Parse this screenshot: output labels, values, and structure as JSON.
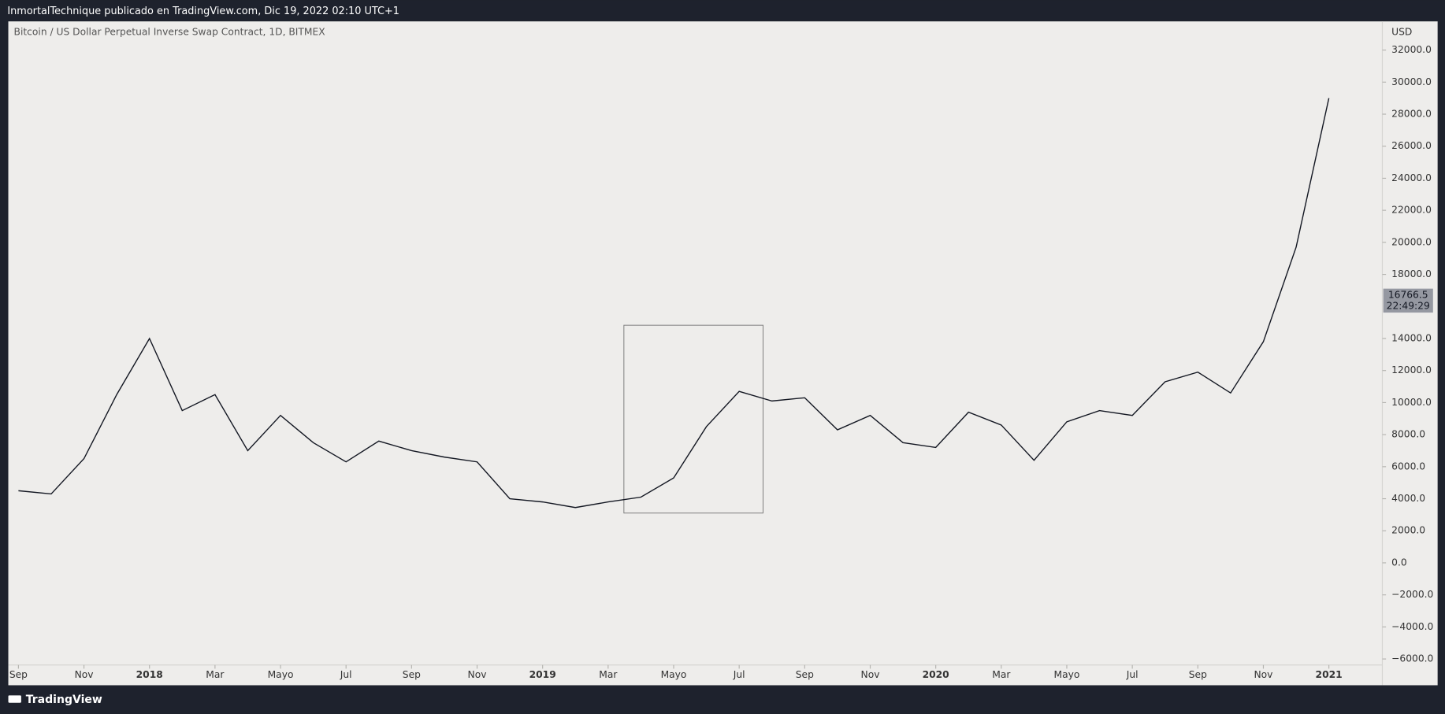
{
  "header": "InmortalTechnique publicado en TradingView.com, Dic 19, 2022 02:10 UTC+1",
  "footer": "TradingView",
  "chart_data": {
    "type": "line",
    "title": "Bitcoin / US Dollar Perpetual Inverse Swap Contract, 1D, BITMEX",
    "y_axis_label": "USD",
    "x": [
      "2017-09",
      "2017-10",
      "2017-11",
      "2017-12",
      "2018-01",
      "2018-02",
      "2018-03",
      "2018-04",
      "2018-05",
      "2018-06",
      "2018-07",
      "2018-08",
      "2018-09",
      "2018-10",
      "2018-11",
      "2018-12",
      "2019-01",
      "2019-02",
      "2019-03",
      "2019-04",
      "2019-05",
      "2019-06",
      "2019-07",
      "2019-08",
      "2019-09",
      "2019-10",
      "2019-11",
      "2019-12",
      "2020-01",
      "2020-02",
      "2020-03",
      "2020-04",
      "2020-05",
      "2020-06",
      "2020-07",
      "2020-08",
      "2020-09",
      "2020-10",
      "2020-11",
      "2020-12",
      "2021-01"
    ],
    "series": [
      {
        "name": "BTCUSD",
        "color": "#131722",
        "values": [
          4500,
          4300,
          6500,
          10500,
          14000,
          9500,
          10500,
          7000,
          9200,
          7500,
          6300,
          7600,
          7000,
          6600,
          6300,
          4000,
          3800,
          3450,
          3800,
          4100,
          5300,
          8500,
          10700,
          10100,
          10300,
          8300,
          9200,
          7500,
          7200,
          9400,
          8600,
          6400,
          8800,
          9500,
          9200,
          11300,
          11900,
          10600,
          13800,
          19700,
          29000
        ]
      }
    ],
    "xticks": [
      {
        "value": "2017-09",
        "label": "Sep"
      },
      {
        "value": "2017-11",
        "label": "Nov"
      },
      {
        "value": "2018-01",
        "label": "2018"
      },
      {
        "value": "2018-03",
        "label": "Mar"
      },
      {
        "value": "2018-05",
        "label": "Mayo"
      },
      {
        "value": "2018-07",
        "label": "Jul"
      },
      {
        "value": "2018-09",
        "label": "Sep"
      },
      {
        "value": "2018-11",
        "label": "Nov"
      },
      {
        "value": "2019-01",
        "label": "2019"
      },
      {
        "value": "2019-03",
        "label": "Mar"
      },
      {
        "value": "2019-05",
        "label": "Mayo"
      },
      {
        "value": "2019-07",
        "label": "Jul"
      },
      {
        "value": "2019-09",
        "label": "Sep"
      },
      {
        "value": "2019-11",
        "label": "Nov"
      },
      {
        "value": "2020-01",
        "label": "2020"
      },
      {
        "value": "2020-03",
        "label": "Mar"
      },
      {
        "value": "2020-05",
        "label": "Mayo"
      },
      {
        "value": "2020-07",
        "label": "Jul"
      },
      {
        "value": "2020-09",
        "label": "Sep"
      },
      {
        "value": "2020-11",
        "label": "Nov"
      },
      {
        "value": "2021-01",
        "label": "2021"
      }
    ],
    "ylim": [
      -7640,
      33790
    ],
    "yticks": [
      {
        "value": -6000,
        "label": "−6000.0"
      },
      {
        "value": -4000,
        "label": "−4000.0"
      },
      {
        "value": -2000,
        "label": "−2000.0"
      },
      {
        "value": 0,
        "label": "0.0"
      },
      {
        "value": 2000,
        "label": "2000.0"
      },
      {
        "value": 4000,
        "label": "4000.0"
      },
      {
        "value": 6000,
        "label": "6000.0"
      },
      {
        "value": 8000,
        "label": "8000.0"
      },
      {
        "value": 10000,
        "label": "10000.0"
      },
      {
        "value": 12000,
        "label": "12000.0"
      },
      {
        "value": 14000,
        "label": "14000.0"
      },
      {
        "value": 18000,
        "label": "18000.0"
      },
      {
        "value": 20000,
        "label": "20000.0"
      },
      {
        "value": 22000,
        "label": "22000.0"
      },
      {
        "value": 24000,
        "label": "24000.0"
      },
      {
        "value": 26000,
        "label": "26000.0"
      },
      {
        "value": 28000,
        "label": "28000.0"
      },
      {
        "value": 30000,
        "label": "30000.0"
      },
      {
        "value": 32000,
        "label": "32000.0"
      }
    ],
    "last_price": {
      "value": 16766.5,
      "label": "16766.5"
    },
    "countdown": "22:49:29",
    "grid": false
  }
}
